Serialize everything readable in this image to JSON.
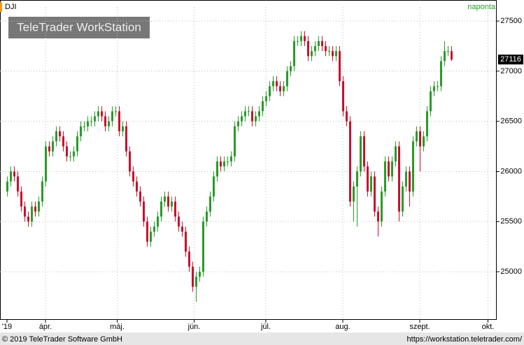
{
  "chart_data": {
    "type": "candlestick",
    "symbol": "DJI",
    "interval": "naponta",
    "watermark": "TeleTrader WorkStation",
    "footer_left": "© 2019 TeleTrader Software GmbH",
    "footer_right": "https://workstation.teletrader.com/",
    "up_color": "#2a9a2a",
    "down_color": "#c8102e",
    "ylim": [
      24520,
      27640
    ],
    "yticks": [
      25000,
      25500,
      26000,
      26500,
      27000,
      27500
    ],
    "grid": true,
    "xlim": [
      -2,
      140
    ],
    "xticks": [
      {
        "value": 0,
        "label": "'19"
      },
      {
        "value": 11,
        "label": "ápr."
      },
      {
        "value": 31.5,
        "label": "máj."
      },
      {
        "value": 53.5,
        "label": "jún."
      },
      {
        "value": 74,
        "label": "júl."
      },
      {
        "value": 96,
        "label": "aug."
      },
      {
        "value": 118,
        "label": "szept."
      },
      {
        "value": 137.5,
        "label": "okt."
      }
    ],
    "open": [
      25800,
      25900,
      26000,
      25950,
      25800,
      25650,
      25550,
      25500,
      25650,
      25600,
      25700,
      25900,
      26250,
      26200,
      26300,
      26400,
      26350,
      26250,
      26150,
      26150,
      26200,
      26350,
      26450,
      26450,
      26500,
      26500,
      26550,
      26600,
      26550,
      26450,
      26500,
      26600,
      26600,
      26400,
      26450,
      26200,
      26000,
      25900,
      25800,
      25700,
      25500,
      25300,
      25400,
      25450,
      25550,
      25700,
      25750,
      25650,
      25700,
      25550,
      25450,
      25400,
      25200,
      25050,
      24850,
      24950,
      25000,
      25500,
      25600,
      25750,
      25950,
      26100,
      26050,
      26100,
      26100,
      26150,
      26450,
      26500,
      26550,
      26600,
      26600,
      26500,
      26550,
      26600,
      26700,
      26750,
      26850,
      26900,
      26850,
      26800,
      26850,
      27000,
      27050,
      27300,
      27300,
      27350,
      27300,
      27150,
      27200,
      27250,
      27300,
      27250,
      27200,
      27200,
      27150,
      27200,
      26900,
      26600,
      26500,
      25700,
      25850,
      26000,
      26350,
      26050,
      25800,
      25950,
      25600,
      25500,
      25800,
      26100,
      25950,
      26100,
      26250,
      25600,
      25850,
      26000,
      25800,
      26300,
      26400,
      26250,
      26350,
      26600,
      26800,
      26850,
      26850,
      27100,
      27200,
      27200
    ],
    "high": [
      25950,
      26050,
      26050,
      26000,
      25850,
      25700,
      25600,
      25700,
      25700,
      25750,
      25950,
      26300,
      26300,
      26350,
      26450,
      26450,
      26400,
      26300,
      26200,
      26250,
      26400,
      26500,
      26500,
      26550,
      26550,
      26600,
      26650,
      26650,
      26600,
      26550,
      26650,
      26650,
      26650,
      26500,
      26500,
      26250,
      26050,
      25950,
      25850,
      25750,
      25550,
      25450,
      25500,
      25600,
      25750,
      25800,
      25800,
      25750,
      25750,
      25600,
      25500,
      25450,
      25250,
      25100,
      25000,
      25050,
      25550,
      25650,
      25800,
      26000,
      26150,
      26150,
      26150,
      26150,
      26200,
      26500,
      26550,
      26600,
      26650,
      26650,
      26650,
      26600,
      26650,
      26750,
      26800,
      26900,
      26950,
      26950,
      26900,
      26900,
      27050,
      27100,
      27350,
      27350,
      27400,
      27400,
      27350,
      27250,
      27300,
      27350,
      27350,
      27300,
      27250,
      27250,
      27250,
      27250,
      26950,
      26650,
      26550,
      25900,
      26050,
      26400,
      26400,
      26100,
      26000,
      26000,
      25650,
      25850,
      26150,
      26150,
      26150,
      26300,
      26300,
      25900,
      26050,
      26050,
      26350,
      26450,
      26450,
      26400,
      26650,
      26850,
      26900,
      26900,
      27150,
      27300,
      27250,
      27250
    ],
    "low": [
      25750,
      25850,
      25900,
      25750,
      25600,
      25500,
      25450,
      25450,
      25550,
      25550,
      25650,
      25850,
      26150,
      26150,
      26250,
      26300,
      26200,
      26100,
      26100,
      26100,
      26150,
      26300,
      26400,
      26400,
      26450,
      26450,
      26500,
      26500,
      26400,
      26400,
      26450,
      26550,
      26350,
      26350,
      26150,
      25950,
      25850,
      25750,
      25650,
      25450,
      25250,
      25250,
      25350,
      25400,
      25500,
      25650,
      25600,
      25600,
      25500,
      25400,
      25350,
      25150,
      25000,
      24800,
      24700,
      24900,
      24950,
      25450,
      25550,
      25700,
      25900,
      26000,
      26000,
      26050,
      26050,
      26100,
      26400,
      26450,
      26500,
      26550,
      26450,
      26450,
      26500,
      26550,
      26650,
      26700,
      26800,
      26800,
      26750,
      26750,
      26800,
      26950,
      27000,
      27250,
      27250,
      27250,
      27100,
      27100,
      27150,
      27200,
      27200,
      27150,
      27150,
      27100,
      27100,
      26850,
      26550,
      26450,
      25650,
      25500,
      25450,
      25950,
      26000,
      25750,
      25750,
      25550,
      25350,
      25450,
      25750,
      25900,
      25900,
      26050,
      25500,
      25550,
      25800,
      25650,
      25750,
      26250,
      26000,
      26200,
      26300,
      26550,
      26750,
      26800,
      26800,
      27050,
      27150,
      27100
    ],
    "close": [
      25900,
      26000,
      25950,
      25800,
      25650,
      25550,
      25500,
      25650,
      25600,
      25700,
      25900,
      26250,
      26200,
      26300,
      26400,
      26350,
      26250,
      26150,
      26150,
      26200,
      26350,
      26450,
      26450,
      26500,
      26500,
      26550,
      26600,
      26550,
      26450,
      26500,
      26600,
      26600,
      26400,
      26450,
      26200,
      26000,
      25900,
      25800,
      25700,
      25500,
      25300,
      25400,
      25450,
      25550,
      25700,
      25750,
      25650,
      25700,
      25550,
      25450,
      25400,
      25200,
      25050,
      24850,
      24950,
      25000,
      25500,
      25600,
      25750,
      25950,
      26100,
      26050,
      26100,
      26100,
      26150,
      26450,
      26500,
      26550,
      26600,
      26600,
      26500,
      26550,
      26600,
      26700,
      26750,
      26850,
      26900,
      26850,
      26800,
      26850,
      27000,
      27050,
      27300,
      27300,
      27350,
      27300,
      27150,
      27200,
      27250,
      27300,
      27250,
      27200,
      27200,
      27150,
      27200,
      26900,
      26600,
      26500,
      25700,
      25850,
      26000,
      26350,
      26050,
      25800,
      25950,
      25600,
      25500,
      25800,
      26100,
      25950,
      26100,
      26250,
      25600,
      25850,
      26000,
      25800,
      26300,
      26400,
      26250,
      26350,
      26600,
      26800,
      26850,
      26850,
      27100,
      27200,
      27200,
      27116
    ]
  }
}
